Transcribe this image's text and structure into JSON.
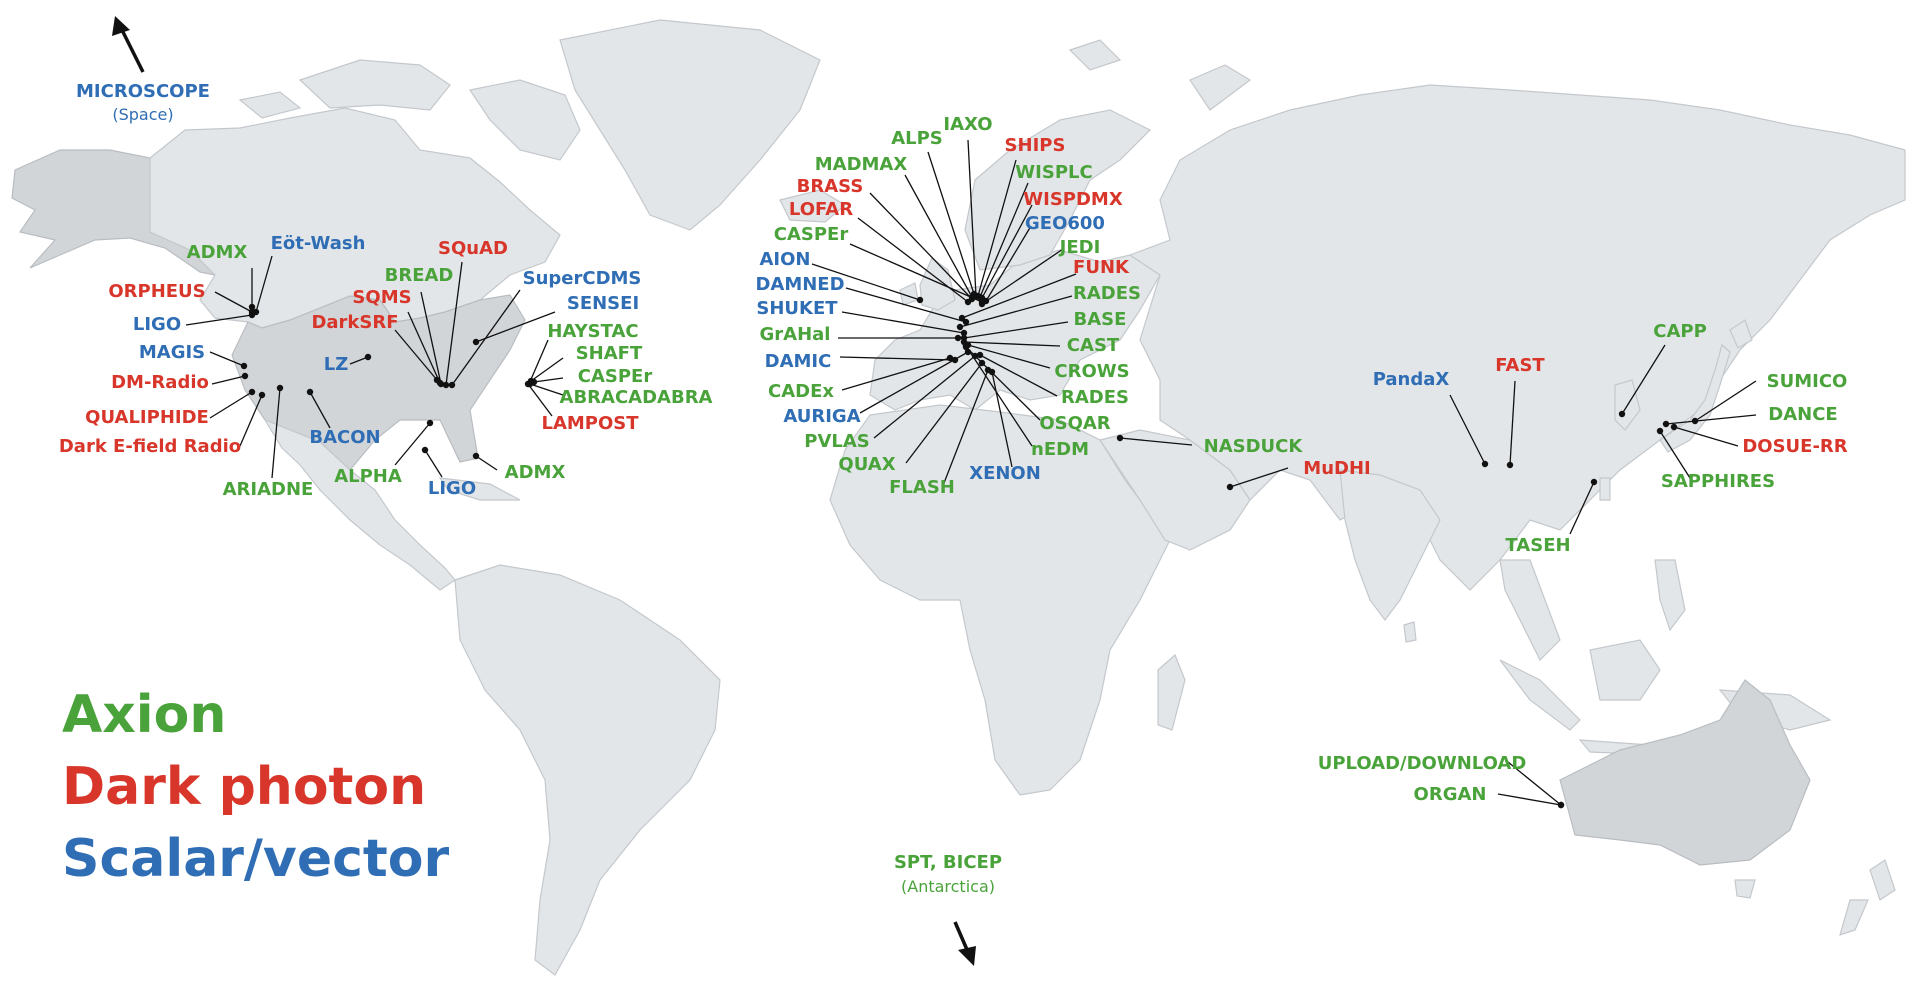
{
  "colors": {
    "axion": "#4aa33a",
    "dark_photon": "#d8362a",
    "scalar_vector": "#2f6db5",
    "land": "#e3e6e8",
    "land_highlight": "#d2d5d8",
    "leader": "#111111"
  },
  "legend": {
    "axion": "Axion",
    "dark_photon": "Dark photon",
    "scalar_vector": "Scalar/vector"
  },
  "arrows": {
    "microscope": {
      "label": "MICROSCOPE",
      "sub": "(Space)"
    },
    "antarctica": {
      "label": "SPT, BICEP",
      "sub": "(Antarctica)"
    }
  },
  "experiments": [
    {
      "id": "admx-wa",
      "name": "ADMX",
      "type": "axion"
    },
    {
      "id": "eot-wash",
      "name": "Eöt-Wash",
      "type": "scalar"
    },
    {
      "id": "orpheus",
      "name": "ORPHEUS",
      "type": "dark"
    },
    {
      "id": "ligo-hanford",
      "name": "LIGO",
      "type": "scalar"
    },
    {
      "id": "magis",
      "name": "MAGIS",
      "type": "scalar"
    },
    {
      "id": "dm-radio",
      "name": "DM-Radio",
      "type": "dark"
    },
    {
      "id": "qualiphide",
      "name": "QUALIPHIDE",
      "type": "dark"
    },
    {
      "id": "dark-efield",
      "name": "Dark E-field Radio",
      "type": "dark"
    },
    {
      "id": "ariadne",
      "name": "ARIADNE",
      "type": "axion"
    },
    {
      "id": "bacon",
      "name": "BACON",
      "type": "scalar"
    },
    {
      "id": "lz",
      "name": "LZ",
      "type": "scalar"
    },
    {
      "id": "alpha",
      "name": "ALPHA",
      "type": "axion"
    },
    {
      "id": "ligo-livingston",
      "name": "LIGO",
      "type": "scalar"
    },
    {
      "id": "admx-fl",
      "name": "ADMX",
      "type": "axion"
    },
    {
      "id": "squad",
      "name": "SQuAD",
      "type": "dark"
    },
    {
      "id": "bread",
      "name": "BREAD",
      "type": "axion"
    },
    {
      "id": "sqms",
      "name": "SQMS",
      "type": "dark"
    },
    {
      "id": "darksrf",
      "name": "DarkSRF",
      "type": "dark"
    },
    {
      "id": "supercdms",
      "name": "SuperCDMS",
      "type": "scalar"
    },
    {
      "id": "sensei",
      "name": "SENSEI",
      "type": "scalar"
    },
    {
      "id": "haystac",
      "name": "HAYSTAC",
      "type": "axion"
    },
    {
      "id": "shaft",
      "name": "SHAFT",
      "type": "axion"
    },
    {
      "id": "casper-us",
      "name": "CASPEr",
      "type": "axion"
    },
    {
      "id": "abracadabra",
      "name": "ABRACADABRA",
      "type": "axion"
    },
    {
      "id": "lampost",
      "name": "LAMPOST",
      "type": "dark"
    },
    {
      "id": "alps",
      "name": "ALPS",
      "type": "axion"
    },
    {
      "id": "iaxo",
      "name": "IAXO",
      "type": "axion"
    },
    {
      "id": "ships",
      "name": "SHIPS",
      "type": "dark"
    },
    {
      "id": "madmax",
      "name": "MADMAX",
      "type": "axion"
    },
    {
      "id": "wisplc",
      "name": "WISPLC",
      "type": "axion"
    },
    {
      "id": "brass",
      "name": "BRASS",
      "type": "dark"
    },
    {
      "id": "wispdmx",
      "name": "WISPDMX",
      "type": "dark"
    },
    {
      "id": "lofar",
      "name": "LOFAR",
      "type": "dark"
    },
    {
      "id": "geo600",
      "name": "GEO600",
      "type": "scalar"
    },
    {
      "id": "casper-eu",
      "name": "CASPEr",
      "type": "axion"
    },
    {
      "id": "jedi",
      "name": "JEDI",
      "type": "axion"
    },
    {
      "id": "aion",
      "name": "AION",
      "type": "scalar"
    },
    {
      "id": "funk",
      "name": "FUNK",
      "type": "dark"
    },
    {
      "id": "damned",
      "name": "DAMNED",
      "type": "scalar"
    },
    {
      "id": "rades-1",
      "name": "RADES",
      "type": "axion"
    },
    {
      "id": "shuket",
      "name": "SHUKET",
      "type": "scalar"
    },
    {
      "id": "base",
      "name": "BASE",
      "type": "axion"
    },
    {
      "id": "grahal",
      "name": "GrAHal",
      "type": "axion"
    },
    {
      "id": "cast",
      "name": "CAST",
      "type": "axion"
    },
    {
      "id": "damic",
      "name": "DAMIC",
      "type": "scalar"
    },
    {
      "id": "crows",
      "name": "CROWS",
      "type": "axion"
    },
    {
      "id": "cadex",
      "name": "CADEx",
      "type": "axion"
    },
    {
      "id": "rades-2",
      "name": "RADES",
      "type": "axion"
    },
    {
      "id": "auriga",
      "name": "AURIGA",
      "type": "scalar"
    },
    {
      "id": "osqar",
      "name": "OSQAR",
      "type": "axion"
    },
    {
      "id": "pvlas",
      "name": "PVLAS",
      "type": "axion"
    },
    {
      "id": "nedm",
      "name": "nEDM",
      "type": "axion"
    },
    {
      "id": "quax",
      "name": "QUAX",
      "type": "axion"
    },
    {
      "id": "flash",
      "name": "FLASH",
      "type": "axion"
    },
    {
      "id": "xenon",
      "name": "XENON",
      "type": "scalar"
    },
    {
      "id": "nasduck",
      "name": "NASDUCK",
      "type": "axion"
    },
    {
      "id": "mudhi",
      "name": "MuDHI",
      "type": "dark"
    },
    {
      "id": "pandax",
      "name": "PandaX",
      "type": "scalar"
    },
    {
      "id": "fast",
      "name": "FAST",
      "type": "dark"
    },
    {
      "id": "capp",
      "name": "CAPP",
      "type": "axion"
    },
    {
      "id": "sumico",
      "name": "SUMICO",
      "type": "axion"
    },
    {
      "id": "dance",
      "name": "DANCE",
      "type": "axion"
    },
    {
      "id": "dosue-rr",
      "name": "DOSUE-RR",
      "type": "dark"
    },
    {
      "id": "sapphires",
      "name": "SAPPHIRES",
      "type": "axion"
    },
    {
      "id": "taseh",
      "name": "TASEH",
      "type": "axion"
    },
    {
      "id": "upload-download",
      "name": "UPLOAD/DOWNLOAD",
      "type": "axion"
    },
    {
      "id": "organ",
      "name": "ORGAN",
      "type": "axion"
    }
  ]
}
